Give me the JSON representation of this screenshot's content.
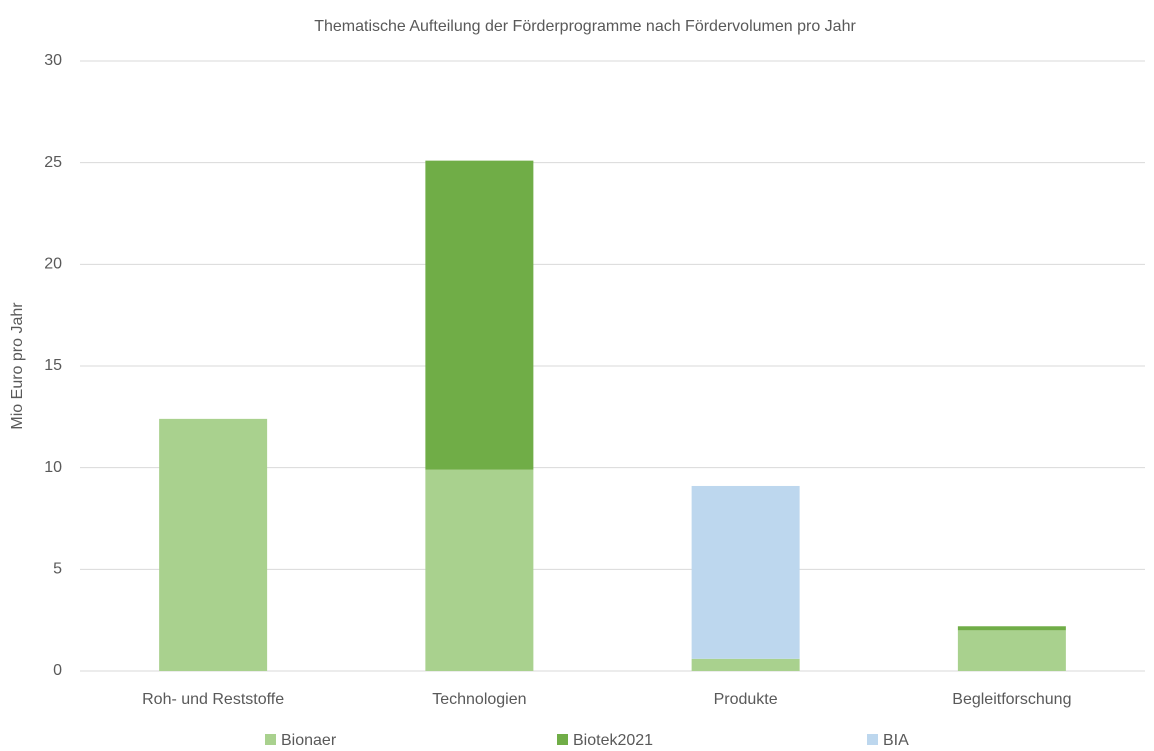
{
  "chart_data": {
    "type": "stacked_bar",
    "title": "Thematische Aufteilung der Förderprogramme nach Fördervolumen pro Jahr",
    "y_label": "Mio Euro pro Jahr",
    "categories": [
      "Roh- und Reststoffe",
      "Technologien",
      "Produkte",
      "Begleitforschung"
    ],
    "series": [
      {
        "name": "Bionaer",
        "color": "#a9d18e",
        "values": [
          12.4,
          9.9,
          0.6,
          2.0
        ]
      },
      {
        "name": "Biotek2021",
        "color": "#70ad47",
        "values": [
          0,
          15.2,
          0,
          0.2
        ]
      },
      {
        "name": "BIA",
        "color": "#bdd7ee",
        "values": [
          0,
          0,
          8.5,
          0
        ]
      }
    ],
    "ylim": [
      0,
      30
    ],
    "yticks": [
      0,
      5,
      10,
      15,
      20,
      25,
      30
    ],
    "grid": true,
    "legend": "bottom"
  }
}
